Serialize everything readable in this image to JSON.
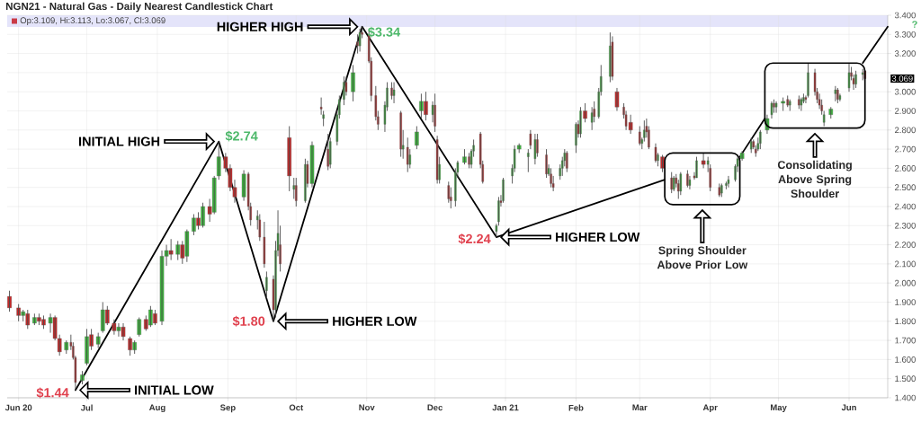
{
  "chart_data": {
    "type": "candlestick",
    "title": "NGN21 - Natural Gas - Daily Nearest Candlestick Chart",
    "x": [
      "2020-05-28",
      "2020-06-01",
      "2020-06-03",
      "2020-06-05",
      "2020-06-08",
      "2020-06-10",
      "2020-06-12",
      "2020-06-15",
      "2020-06-17",
      "2020-06-19",
      "2020-06-22",
      "2020-06-24",
      "2020-06-25",
      "2020-06-26",
      "2020-06-29",
      "2020-07-01",
      "2020-07-03",
      "2020-07-06",
      "2020-07-08",
      "2020-07-10",
      "2020-07-13",
      "2020-07-15",
      "2020-07-17",
      "2020-07-20",
      "2020-07-22",
      "2020-07-24",
      "2020-07-27",
      "2020-07-29",
      "2020-07-31",
      "2020-08-03",
      "2020-08-05",
      "2020-08-07",
      "2020-08-10",
      "2020-08-12",
      "2020-08-14",
      "2020-08-17",
      "2020-08-19",
      "2020-08-21",
      "2020-08-24",
      "2020-08-26",
      "2020-08-28",
      "2020-08-31",
      "2020-09-02",
      "2020-09-04",
      "2020-09-08",
      "2020-09-10",
      "2020-09-11",
      "2020-09-14",
      "2020-09-15",
      "2020-09-17",
      "2020-09-18",
      "2020-09-21",
      "2020-09-22",
      "2020-09-23",
      "2020-09-24",
      "2020-09-28",
      "2020-09-30",
      "2020-10-01",
      "2020-10-05",
      "2020-10-06",
      "2020-10-08",
      "2020-10-12",
      "2020-10-13",
      "2020-10-15",
      "2020-10-16",
      "2020-10-19",
      "2020-10-20",
      "2020-10-22",
      "2020-10-23",
      "2020-10-26",
      "2020-10-28",
      "2020-10-29",
      "2020-10-30",
      "2020-11-02",
      "2020-11-03",
      "2020-11-05",
      "2020-11-06",
      "2020-11-09",
      "2020-11-10",
      "2020-11-12",
      "2020-11-13",
      "2020-11-16",
      "2020-11-17",
      "2020-11-19",
      "2020-11-20",
      "2020-11-23",
      "2020-11-25",
      "2020-11-27",
      "2020-11-30",
      "2020-12-01",
      "2020-12-02",
      "2020-12-03",
      "2020-12-07",
      "2020-12-08",
      "2020-12-10",
      "2020-12-11",
      "2020-12-14",
      "2020-12-16",
      "2020-12-17",
      "2020-12-18",
      "2020-12-21",
      "2020-12-22",
      "2020-12-28",
      "2020-12-29",
      "2020-12-30",
      "2020-12-31",
      "2021-01-04",
      "2021-01-05",
      "2021-01-07",
      "2021-01-11",
      "2021-01-12",
      "2021-01-14",
      "2021-01-15",
      "2021-01-19",
      "2021-01-20",
      "2021-01-21",
      "2021-01-22",
      "2021-01-25",
      "2021-01-26",
      "2021-01-27",
      "2021-01-28",
      "2021-02-01",
      "2021-02-02",
      "2021-02-03",
      "2021-02-05",
      "2021-02-08",
      "2021-02-09",
      "2021-02-11",
      "2021-02-12",
      "2021-02-16",
      "2021-02-17",
      "2021-02-19",
      "2021-02-22",
      "2021-02-23",
      "2021-02-25",
      "2021-03-01",
      "2021-03-02",
      "2021-03-03",
      "2021-03-04",
      "2021-03-05",
      "2021-03-08",
      "2021-03-09",
      "2021-03-11",
      "2021-03-15",
      "2021-03-16",
      "2021-03-17",
      "2021-03-18",
      "2021-03-19",
      "2021-03-22",
      "2021-03-23",
      "2021-03-25",
      "2021-03-26",
      "2021-03-29",
      "2021-03-31",
      "2021-04-01",
      "2021-04-05",
      "2021-04-06",
      "2021-04-08",
      "2021-04-09",
      "2021-04-12",
      "2021-04-13",
      "2021-04-15",
      "2021-04-19",
      "2021-04-20",
      "2021-04-21",
      "2021-04-22",
      "2021-04-23",
      "2021-04-26",
      "2021-04-28",
      "2021-04-29",
      "2021-04-30",
      "2021-05-03",
      "2021-05-05",
      "2021-05-06",
      "2021-05-10",
      "2021-05-11",
      "2021-05-12",
      "2021-05-13",
      "2021-05-14",
      "2021-05-17",
      "2021-05-18",
      "2021-05-19",
      "2021-05-20",
      "2021-05-21",
      "2021-05-24",
      "2021-05-26",
      "2021-05-27",
      "2021-05-28",
      "2021-06-01",
      "2021-06-02",
      "2021-06-03",
      "2021-06-04",
      "2021-06-07",
      "2021-06-08"
    ],
    "ohlc": [
      [
        1.93,
        1.96,
        1.85,
        1.87
      ],
      [
        1.87,
        1.89,
        1.8,
        1.83
      ],
      [
        1.83,
        1.86,
        1.8,
        1.85
      ],
      [
        1.84,
        1.86,
        1.76,
        1.78
      ],
      [
        1.79,
        1.84,
        1.78,
        1.82
      ],
      [
        1.82,
        1.84,
        1.78,
        1.8
      ],
      [
        1.81,
        1.83,
        1.76,
        1.78
      ],
      [
        1.79,
        1.84,
        1.74,
        1.82
      ],
      [
        1.82,
        1.83,
        1.7,
        1.71
      ],
      [
        1.71,
        1.73,
        1.62,
        1.64
      ],
      [
        1.65,
        1.7,
        1.63,
        1.69
      ],
      [
        1.69,
        1.73,
        1.65,
        1.67
      ],
      [
        1.67,
        1.69,
        1.6,
        1.61
      ],
      [
        1.61,
        1.62,
        1.44,
        1.48
      ],
      [
        1.49,
        1.54,
        1.47,
        1.52
      ],
      [
        1.58,
        1.76,
        1.57,
        1.72
      ],
      [
        1.73,
        1.76,
        1.65,
        1.67
      ],
      [
        1.68,
        1.74,
        1.66,
        1.72
      ],
      [
        1.75,
        1.9,
        1.74,
        1.86
      ],
      [
        1.86,
        1.88,
        1.78,
        1.79
      ],
      [
        1.79,
        1.81,
        1.73,
        1.75
      ],
      [
        1.75,
        1.79,
        1.72,
        1.77
      ],
      [
        1.77,
        1.79,
        1.7,
        1.72
      ],
      [
        1.71,
        1.72,
        1.62,
        1.65
      ],
      [
        1.65,
        1.7,
        1.63,
        1.69
      ],
      [
        1.73,
        1.82,
        1.72,
        1.81
      ],
      [
        1.81,
        1.83,
        1.75,
        1.76
      ],
      [
        1.78,
        1.88,
        1.77,
        1.86
      ],
      [
        1.84,
        1.86,
        1.78,
        1.79
      ],
      [
        1.8,
        2.17,
        1.78,
        2.14
      ],
      [
        2.14,
        2.2,
        2.09,
        2.17
      ],
      [
        2.17,
        2.23,
        2.12,
        2.15
      ],
      [
        2.15,
        2.22,
        2.12,
        2.2
      ],
      [
        2.2,
        2.22,
        2.1,
        2.13
      ],
      [
        2.14,
        2.28,
        2.11,
        2.27
      ],
      [
        2.27,
        2.36,
        2.25,
        2.34
      ],
      [
        2.34,
        2.37,
        2.28,
        2.3
      ],
      [
        2.3,
        2.42,
        2.29,
        2.4
      ],
      [
        2.4,
        2.44,
        2.32,
        2.36
      ],
      [
        2.37,
        2.56,
        2.36,
        2.55
      ],
      [
        2.56,
        2.74,
        2.54,
        2.66
      ],
      [
        2.66,
        2.68,
        2.58,
        2.6
      ],
      [
        2.6,
        2.62,
        2.48,
        2.5
      ],
      [
        2.5,
        2.54,
        2.42,
        2.45
      ],
      [
        2.45,
        2.59,
        2.43,
        2.57
      ],
      [
        2.57,
        2.58,
        2.38,
        2.4
      ],
      [
        2.4,
        2.42,
        2.3,
        2.33
      ],
      [
        2.33,
        2.38,
        2.28,
        2.35
      ],
      [
        2.33,
        2.36,
        2.22,
        2.24
      ],
      [
        2.24,
        2.32,
        2.08,
        2.1
      ],
      [
        1.96,
        2.06,
        1.92,
        2.03
      ],
      [
        2.02,
        2.04,
        1.8,
        1.86
      ],
      [
        1.86,
        2.22,
        1.82,
        2.17
      ],
      [
        2.17,
        2.38,
        2.14,
        2.26
      ],
      [
        2.2,
        2.3,
        2.06,
        2.1
      ],
      [
        2.76,
        2.82,
        2.48,
        2.56
      ],
      [
        2.49,
        2.55,
        2.44,
        2.51
      ],
      [
        2.51,
        2.55,
        2.4,
        2.43
      ],
      [
        2.43,
        2.65,
        2.42,
        2.62
      ],
      [
        2.62,
        2.64,
        2.5,
        2.52
      ],
      [
        2.52,
        2.74,
        2.5,
        2.72
      ],
      [
        2.92,
        2.97,
        2.88,
        2.91
      ],
      [
        2.86,
        2.9,
        2.82,
        2.88
      ],
      [
        2.7,
        2.78,
        2.59,
        2.61
      ],
      [
        2.62,
        2.76,
        2.6,
        2.74
      ],
      [
        2.74,
        2.9,
        2.72,
        2.88
      ],
      [
        2.88,
        2.98,
        2.86,
        2.96
      ],
      [
        2.96,
        3.08,
        2.93,
        3.05
      ],
      [
        3.05,
        3.08,
        2.98,
        3.0
      ],
      [
        3.0,
        3.14,
        2.95,
        3.1
      ],
      [
        3.26,
        3.3,
        3.2,
        3.24
      ],
      [
        3.24,
        3.33,
        3.21,
        3.31
      ],
      [
        3.31,
        3.34,
        3.28,
        3.3
      ],
      [
        3.3,
        3.32,
        3.15,
        3.16
      ],
      [
        3.16,
        3.18,
        2.95,
        2.98
      ],
      [
        2.98,
        3.03,
        2.85,
        2.87
      ],
      [
        2.87,
        2.9,
        2.8,
        2.83
      ],
      [
        2.83,
        2.95,
        2.79,
        2.93
      ],
      [
        2.92,
        3.05,
        2.9,
        3.02
      ],
      [
        3.02,
        3.05,
        2.96,
        2.98
      ],
      [
        2.98,
        3.05,
        2.94,
        3.01
      ],
      [
        2.89,
        2.9,
        2.66,
        2.7
      ],
      [
        2.7,
        2.8,
        2.65,
        2.72
      ],
      [
        2.71,
        2.76,
        2.58,
        2.62
      ],
      [
        2.62,
        2.7,
        2.6,
        2.67
      ],
      [
        2.72,
        2.82,
        2.7,
        2.79
      ],
      [
        2.9,
        2.99,
        2.86,
        2.95
      ],
      [
        2.95,
        3.0,
        2.85,
        2.88
      ],
      [
        2.88,
        2.95,
        2.84,
        2.93
      ],
      [
        2.93,
        2.99,
        2.79,
        2.82
      ],
      [
        2.75,
        2.77,
        2.52,
        2.54
      ],
      [
        2.54,
        2.66,
        2.52,
        2.62
      ],
      [
        2.51,
        2.53,
        2.42,
        2.44
      ],
      [
        2.45,
        2.5,
        2.39,
        2.43
      ],
      [
        2.43,
        2.6,
        2.4,
        2.58
      ],
      [
        2.58,
        2.64,
        2.55,
        2.63
      ],
      [
        2.63,
        2.7,
        2.62,
        2.66
      ],
      [
        2.66,
        2.68,
        2.6,
        2.62
      ],
      [
        2.62,
        2.7,
        2.6,
        2.69
      ],
      [
        2.69,
        2.75,
        2.66,
        2.72
      ],
      [
        2.78,
        2.79,
        2.6,
        2.62
      ],
      [
        2.62,
        2.64,
        2.52,
        2.53
      ],
      [
        2.27,
        2.31,
        2.24,
        2.3
      ],
      [
        2.32,
        2.45,
        2.3,
        2.43
      ],
      [
        2.43,
        2.46,
        2.4,
        2.42
      ],
      [
        2.43,
        2.55,
        2.42,
        2.54
      ],
      [
        2.56,
        2.62,
        2.52,
        2.6
      ],
      [
        2.6,
        2.72,
        2.58,
        2.7
      ],
      [
        2.7,
        2.73,
        2.68,
        2.72
      ],
      [
        2.66,
        2.7,
        2.58,
        2.68
      ],
      [
        2.78,
        2.8,
        2.7,
        2.72
      ],
      [
        2.65,
        2.78,
        2.62,
        2.75
      ],
      [
        2.75,
        2.78,
        2.66,
        2.68
      ],
      [
        2.67,
        2.7,
        2.55,
        2.57
      ],
      [
        2.57,
        2.62,
        2.56,
        2.6
      ],
      [
        2.57,
        2.6,
        2.5,
        2.52
      ],
      [
        2.52,
        2.56,
        2.48,
        2.5
      ],
      [
        2.56,
        2.62,
        2.54,
        2.6
      ],
      [
        2.6,
        2.66,
        2.56,
        2.64
      ],
      [
        2.64,
        2.7,
        2.61,
        2.68
      ],
      [
        2.68,
        2.69,
        2.58,
        2.6
      ],
      [
        2.72,
        2.84,
        2.68,
        2.83
      ],
      [
        2.83,
        2.85,
        2.76,
        2.78
      ],
      [
        2.78,
        2.92,
        2.76,
        2.9
      ],
      [
        2.9,
        2.94,
        2.84,
        2.86
      ],
      [
        2.84,
        2.92,
        2.8,
        2.89
      ],
      [
        2.91,
        2.95,
        2.84,
        2.87
      ],
      [
        2.87,
        3.02,
        2.86,
        3.0
      ],
      [
        3.0,
        3.14,
        2.98,
        3.08
      ],
      [
        3.08,
        3.31,
        3.05,
        3.24
      ],
      [
        3.26,
        3.29,
        3.06,
        3.08
      ],
      [
        3.0,
        3.02,
        2.9,
        2.92
      ],
      [
        2.92,
        2.94,
        2.86,
        2.88
      ],
      [
        2.88,
        2.9,
        2.8,
        2.82
      ],
      [
        2.84,
        2.88,
        2.78,
        2.8
      ],
      [
        2.79,
        2.82,
        2.72,
        2.73
      ],
      [
        2.73,
        2.76,
        2.7,
        2.75
      ],
      [
        2.76,
        2.85,
        2.74,
        2.8
      ],
      [
        2.82,
        2.86,
        2.76,
        2.79
      ],
      [
        2.8,
        2.82,
        2.7,
        2.71
      ],
      [
        2.71,
        2.73,
        2.63,
        2.64
      ],
      [
        2.64,
        2.68,
        2.61,
        2.67
      ],
      [
        2.66,
        2.67,
        2.58,
        2.6
      ],
      [
        2.55,
        2.58,
        2.47,
        2.49
      ],
      [
        2.49,
        2.56,
        2.48,
        2.55
      ],
      [
        2.55,
        2.57,
        2.5,
        2.52
      ],
      [
        2.52,
        2.54,
        2.44,
        2.48
      ],
      [
        2.48,
        2.58,
        2.46,
        2.57
      ],
      [
        2.57,
        2.59,
        2.5,
        2.51
      ],
      [
        2.51,
        2.56,
        2.49,
        2.54
      ],
      [
        2.56,
        2.58,
        2.54,
        2.55
      ],
      [
        2.55,
        2.66,
        2.55,
        2.64
      ],
      [
        2.64,
        2.68,
        2.6,
        2.62
      ],
      [
        2.62,
        2.66,
        2.58,
        2.64
      ],
      [
        2.6,
        2.62,
        2.48,
        2.5
      ],
      [
        2.5,
        2.52,
        2.45,
        2.46
      ],
      [
        2.47,
        2.52,
        2.45,
        2.51
      ],
      [
        2.51,
        2.53,
        2.49,
        2.52
      ],
      [
        2.52,
        2.56,
        2.5,
        2.54
      ],
      [
        2.54,
        2.62,
        2.53,
        2.61
      ],
      [
        2.61,
        2.67,
        2.58,
        2.65
      ],
      [
        2.65,
        2.69,
        2.64,
        2.68
      ],
      [
        2.7,
        2.76,
        2.68,
        2.74
      ],
      [
        2.74,
        2.75,
        2.7,
        2.71
      ],
      [
        2.7,
        2.72,
        2.66,
        2.68
      ],
      [
        2.7,
        2.76,
        2.69,
        2.73
      ],
      [
        2.73,
        2.8,
        2.7,
        2.79
      ],
      [
        2.8,
        2.88,
        2.78,
        2.86
      ],
      [
        2.88,
        2.95,
        2.86,
        2.94
      ],
      [
        2.94,
        2.96,
        2.89,
        2.92
      ],
      [
        2.92,
        2.95,
        2.89,
        2.94
      ],
      [
        2.94,
        2.97,
        2.9,
        2.95
      ],
      [
        2.96,
        2.98,
        2.92,
        2.93
      ],
      [
        2.93,
        2.96,
        2.9,
        2.95
      ],
      [
        2.96,
        2.98,
        2.91,
        2.93
      ],
      [
        2.93,
        2.97,
        2.9,
        2.96
      ],
      [
        2.95,
        2.99,
        2.94,
        2.97
      ],
      [
        2.97,
        2.98,
        2.94,
        2.96
      ],
      [
        2.98,
        3.15,
        2.97,
        3.1
      ],
      [
        3.1,
        3.12,
        2.98,
        3.0
      ],
      [
        3.0,
        3.02,
        2.94,
        2.96
      ],
      [
        2.96,
        2.99,
        2.91,
        2.93
      ],
      [
        2.93,
        2.96,
        2.88,
        2.9
      ],
      [
        2.84,
        2.9,
        2.82,
        2.88
      ],
      [
        2.88,
        2.92,
        2.86,
        2.91
      ],
      [
        2.99,
        3.03,
        2.95,
        3.01
      ],
      [
        3.01,
        3.02,
        2.94,
        2.96
      ],
      [
        2.96,
        2.99,
        2.95,
        2.98
      ],
      [
        3.02,
        3.15,
        3.0,
        3.1
      ],
      [
        3.1,
        3.13,
        3.06,
        3.08
      ],
      [
        3.07,
        3.09,
        3.01,
        3.04
      ],
      [
        3.04,
        3.11,
        3.02,
        3.09
      ],
      [
        3.09,
        3.12,
        3.06,
        3.1
      ],
      [
        3.109,
        3.113,
        3.067,
        3.069
      ]
    ],
    "colors": [
      "#c62828",
      "#c62828",
      "#3cb93c",
      "#c62828",
      "#3cb93c",
      "#c62828",
      "#c62828",
      "#3cb93c",
      "#c62828",
      "#c62828",
      "#3cb93c",
      "#c62828",
      "#c62828",
      "#c62828",
      "#3cb93c",
      "#3cb93c",
      "#c62828",
      "#3cb93c",
      "#3cb93c",
      "#c62828",
      "#c62828",
      "#3cb93c",
      "#c62828",
      "#c62828",
      "#3cb93c",
      "#3cb93c",
      "#c62828",
      "#3cb93c",
      "#c62828",
      "#3cb93c",
      "#3cb93c",
      "#c62828",
      "#3cb93c",
      "#c62828",
      "#3cb93c",
      "#3cb93c",
      "#c62828",
      "#3cb93c",
      "#c62828",
      "#3cb93c",
      "#3cb93c",
      "#c62828",
      "#c62828",
      "#c62828",
      "#3cb93c",
      "#c62828",
      "#c62828",
      "#3cb93c",
      "#c62828",
      "#c62828",
      "#3cb93c",
      "#c62828",
      "#3cb93c",
      "#3cb93c",
      "#c62828",
      "#c62828",
      "#3cb93c",
      "#c62828",
      "#3cb93c",
      "#c62828",
      "#3cb93c",
      "#c62828",
      "#3cb93c",
      "#c62828",
      "#3cb93c",
      "#3cb93c",
      "#3cb93c",
      "#3cb93c",
      "#c62828",
      "#3cb93c",
      "#c62828",
      "#3cb93c",
      "#c62828",
      "#c62828",
      "#c62828",
      "#c62828",
      "#c62828",
      "#3cb93c",
      "#3cb93c",
      "#c62828",
      "#3cb93c",
      "#c62828",
      "#3cb93c",
      "#c62828",
      "#3cb93c",
      "#3cb93c",
      "#3cb93c",
      "#c62828",
      "#3cb93c",
      "#c62828",
      "#c62828",
      "#3cb93c",
      "#c62828",
      "#c62828",
      "#3cb93c",
      "#3cb93c",
      "#3cb93c",
      "#c62828",
      "#3cb93c",
      "#3cb93c",
      "#c62828",
      "#c62828",
      "#3cb93c",
      "#3cb93c",
      "#c62828",
      "#3cb93c",
      "#3cb93c",
      "#3cb93c",
      "#3cb93c",
      "#3cb93c",
      "#c62828",
      "#3cb93c",
      "#c62828",
      "#c62828",
      "#3cb93c",
      "#c62828",
      "#c62828",
      "#3cb93c",
      "#3cb93c",
      "#3cb93c",
      "#c62828",
      "#3cb93c",
      "#c62828",
      "#3cb93c",
      "#c62828",
      "#3cb93c",
      "#c62828",
      "#3cb93c",
      "#3cb93c",
      "#3cb93c",
      "#c62828",
      "#c62828",
      "#c62828",
      "#c62828",
      "#c62828",
      "#c62828",
      "#3cb93c",
      "#3cb93c",
      "#c62828",
      "#c62828",
      "#c62828",
      "#3cb93c",
      "#c62828",
      "#c62828",
      "#3cb93c",
      "#c62828",
      "#c62828",
      "#3cb93c",
      "#c62828",
      "#3cb93c",
      "#c62828",
      "#3cb93c",
      "#c62828",
      "#3cb93c",
      "#c62828",
      "#c62828",
      "#3cb93c",
      "#3cb93c",
      "#3cb93c",
      "#3cb93c",
      "#3cb93c",
      "#3cb93c",
      "#3cb93c",
      "#c62828",
      "#c62828",
      "#3cb93c",
      "#3cb93c",
      "#3cb93c",
      "#3cb93c",
      "#c62828",
      "#3cb93c",
      "#3cb93c",
      "#c62828",
      "#3cb93c",
      "#c62828",
      "#3cb93c",
      "#3cb93c",
      "#c62828",
      "#3cb93c",
      "#c62828",
      "#c62828",
      "#c62828",
      "#c62828",
      "#3cb93c",
      "#3cb93c",
      "#3cb93c",
      "#c62828",
      "#3cb93c",
      "#3cb93c",
      "#c62828",
      "#c62828",
      "#3cb93c",
      "#3cb93c",
      "#c62828"
    ],
    "series": [
      {
        "type": "line",
        "color": "#000000",
        "x": [
          "2020-06-26",
          "2020-08-28",
          "2020-09-21",
          "2020-10-30",
          "2020-12-28",
          "2021-03-12"
        ],
        "values": [
          1.44,
          2.74,
          1.8,
          3.34,
          2.24,
          2.54
        ]
      },
      {
        "type": "line",
        "color": "#000000",
        "x": [
          "2021-04-14",
          "2021-04-25"
        ],
        "values": [
          2.66,
          2.86
        ]
      },
      {
        "type": "line",
        "color": "#000000",
        "x": [
          "2021-06-07",
          "2021-06-18"
        ],
        "values": [
          3.15,
          3.34
        ]
      }
    ],
    "xlim": [
      "2020-05-27",
      "2021-06-18"
    ],
    "xticks": [
      {
        "value": "2020-06-01",
        "label": "Jun 20"
      },
      {
        "value": "2020-07-01",
        "label": "Jul"
      },
      {
        "value": "2020-08-01",
        "label": "Aug"
      },
      {
        "value": "2020-09-01",
        "label": "Sep"
      },
      {
        "value": "2020-10-01",
        "label": "Oct"
      },
      {
        "value": "2020-11-01",
        "label": "Nov"
      },
      {
        "value": "2020-12-01",
        "label": "Dec"
      },
      {
        "value": "2021-01-01",
        "label": "Jan 21"
      },
      {
        "value": "2021-02-01",
        "label": "Feb"
      },
      {
        "value": "2021-03-01",
        "label": "Mar"
      },
      {
        "value": "2021-04-01",
        "label": "Apr"
      },
      {
        "value": "2021-05-01",
        "label": "May"
      },
      {
        "value": "2021-06-01",
        "label": "Jun"
      }
    ],
    "ylim": [
      1.4,
      3.4
    ],
    "yticks": [
      {
        "value": 1.4,
        "label": "1.400"
      },
      {
        "value": 1.5,
        "label": "1.500"
      },
      {
        "value": 1.6,
        "label": "1.600"
      },
      {
        "value": 1.7,
        "label": "1.700"
      },
      {
        "value": 1.8,
        "label": "1.800"
      },
      {
        "value": 1.9,
        "label": "1.900"
      },
      {
        "value": 2.0,
        "label": "2.000"
      },
      {
        "value": 2.1,
        "label": "2.100"
      },
      {
        "value": 2.2,
        "label": "2.200"
      },
      {
        "value": 2.3,
        "label": "2.300"
      },
      {
        "value": 2.4,
        "label": "2.400"
      },
      {
        "value": 2.5,
        "label": "2.500"
      },
      {
        "value": 2.6,
        "label": "2.600"
      },
      {
        "value": 2.7,
        "label": "2.700"
      },
      {
        "value": 2.8,
        "label": "2.800"
      },
      {
        "value": 2.9,
        "label": "2.900"
      },
      {
        "value": 3.0,
        "label": "3.000"
      },
      {
        "value": 3.1,
        "label": null
      },
      {
        "value": 3.2,
        "label": "3.200"
      },
      {
        "value": 3.3,
        "label": "3.300"
      },
      {
        "value": 3.4,
        "label": "3.400"
      }
    ],
    "grid": true,
    "annotations": [
      "Op:3.109, Hi:3.113, Lo:3.067, Cl:3.069",
      {
        "text": "$1.44",
        "x": "2020-06-26",
        "y": 1.44
      },
      "INITIAL LOW",
      {
        "text": "$2.74",
        "x": "2020-08-28",
        "y": 2.74
      },
      "INITIAL HIGH",
      {
        "text": "$1.80",
        "x": "2020-09-21",
        "y": 1.8
      },
      "HIGHER LOW",
      {
        "text": "$3.34",
        "x": "2020-10-30",
        "y": 3.34
      },
      "HIGHER HIGH",
      {
        "text": "$2.24",
        "x": "2020-12-28",
        "y": 2.24
      },
      "HIGHER LOW",
      "Spring Shoulder Above Prior Low",
      "Consolidating Above Spring Shoulder",
      "?",
      "3.069"
    ]
  }
}
